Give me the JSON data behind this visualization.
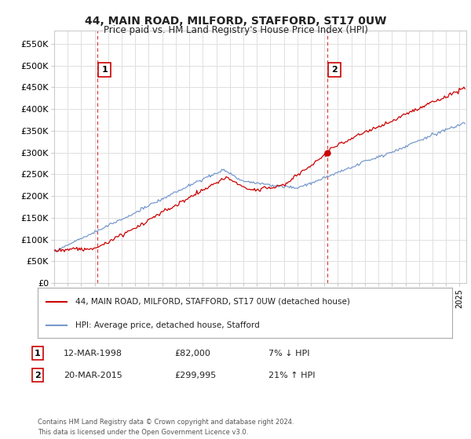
{
  "title": "44, MAIN ROAD, MILFORD, STAFFORD, ST17 0UW",
  "subtitle": "Price paid vs. HM Land Registry's House Price Index (HPI)",
  "yticks": [
    0,
    50000,
    100000,
    150000,
    200000,
    250000,
    300000,
    350000,
    400000,
    450000,
    500000,
    550000
  ],
  "ylim": [
    0,
    580000
  ],
  "xlim": [
    1995,
    2025.5
  ],
  "legend_line1": "44, MAIN ROAD, MILFORD, STAFFORD, ST17 0UW (detached house)",
  "legend_line2": "HPI: Average price, detached house, Stafford",
  "legend_color1": "#cc0000",
  "legend_color2": "#7799cc",
  "marker1_date": 1998.2,
  "marker1_price": 82000,
  "marker2_date": 2015.2,
  "marker2_price": 299995,
  "grid_color": "#e0e0e0",
  "background_color": "#ffffff",
  "vline_color": "#dd3333",
  "footnote": "Contains HM Land Registry data © Crown copyright and database right 2024.\nThis data is licensed under the Open Government Licence v3.0.",
  "transaction1_date": "12-MAR-1998",
  "transaction1_price": "£82,000",
  "transaction1_hpi": "7% ↓ HPI",
  "transaction2_date": "20-MAR-2015",
  "transaction2_price": "£299,995",
  "transaction2_hpi": "21% ↑ HPI"
}
